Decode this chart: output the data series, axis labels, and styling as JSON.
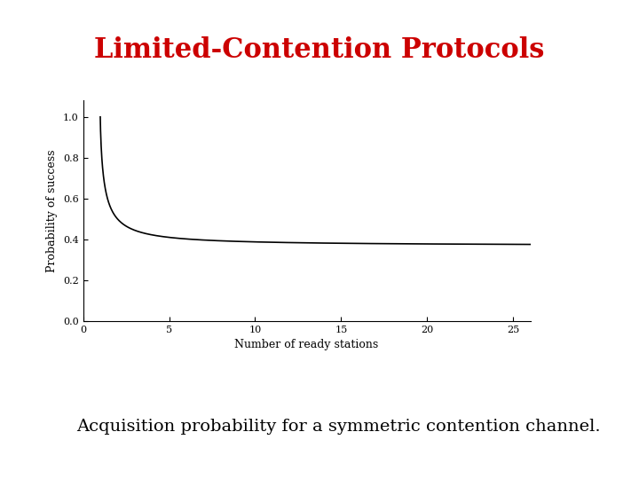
{
  "title": "Limited-Contention Protocols",
  "title_color": "#cc0000",
  "title_fontsize": 22,
  "subtitle": "Acquisition probability for a symmetric contention channel.",
  "subtitle_fontsize": 14,
  "xlabel": "Number of ready stations",
  "ylabel": "Probability of success",
  "xlim": [
    0,
    26
  ],
  "ylim": [
    0.0,
    1.08
  ],
  "x_ticks": [
    0,
    5,
    10,
    15,
    20,
    25
  ],
  "y_ticks": [
    0.0,
    0.2,
    0.4,
    0.6,
    0.8,
    1.0
  ],
  "line_color": "#000000",
  "line_width": 1.2,
  "bg_color": "#ffffff",
  "axis_label_fontsize": 9,
  "tick_fontsize": 8
}
